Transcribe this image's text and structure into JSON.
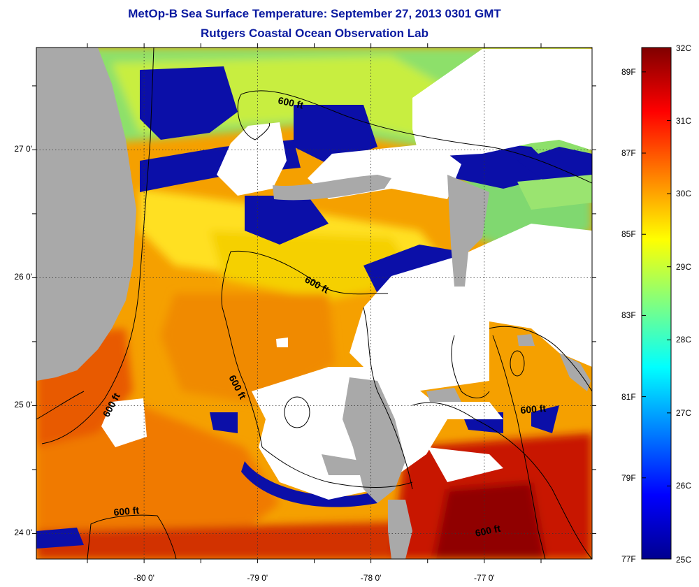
{
  "title": {
    "line1": "MetOp-B Sea Surface Temperature:  September 27, 2013 0301 GMT",
    "line2": "Rutgers Coastal Ocean Observation Lab"
  },
  "map": {
    "lon_range": [
      -80.95,
      -76.05
    ],
    "lat_range": [
      23.8,
      27.8
    ],
    "lat_ticks": [
      {
        "value": 27,
        "label": "27 0'"
      },
      {
        "value": 26,
        "label": "26 0'"
      },
      {
        "value": 25,
        "label": "25 0'"
      },
      {
        "value": 24,
        "label": "24 0'"
      }
    ],
    "lon_ticks": [
      {
        "value": -80,
        "label": "-80 0'"
      },
      {
        "value": -79,
        "label": "-79 0'"
      },
      {
        "value": -78,
        "label": "-78 0'"
      },
      {
        "value": -77,
        "label": "-77 0'"
      }
    ],
    "contour_label": "600 ft",
    "colors": {
      "land": "#a9a9a9",
      "cloud": "#ffffff",
      "coast": "#000000"
    }
  },
  "colorbar": {
    "min_c": 25,
    "max_c": 32,
    "celsius_labels": [
      {
        "value": 32,
        "label": "32C"
      },
      {
        "value": 31,
        "label": "31C"
      },
      {
        "value": 30,
        "label": "30C"
      },
      {
        "value": 29,
        "label": "29C"
      },
      {
        "value": 28,
        "label": "28C"
      },
      {
        "value": 27,
        "label": "27C"
      },
      {
        "value": 26,
        "label": "26C"
      },
      {
        "value": 25,
        "label": "25C"
      }
    ],
    "fahrenheit_labels": [
      {
        "value": 89,
        "label": "89F"
      },
      {
        "value": 87,
        "label": "87F"
      },
      {
        "value": 85,
        "label": "85F"
      },
      {
        "value": 83,
        "label": "83F"
      },
      {
        "value": 81,
        "label": "81F"
      },
      {
        "value": 79,
        "label": "79F"
      },
      {
        "value": 77,
        "label": "77F"
      }
    ],
    "stops": [
      "#00008f",
      "#0000ff",
      "#0080ff",
      "#00ffff",
      "#80ff80",
      "#ffff00",
      "#ff8000",
      "#ff0000",
      "#800000"
    ]
  }
}
